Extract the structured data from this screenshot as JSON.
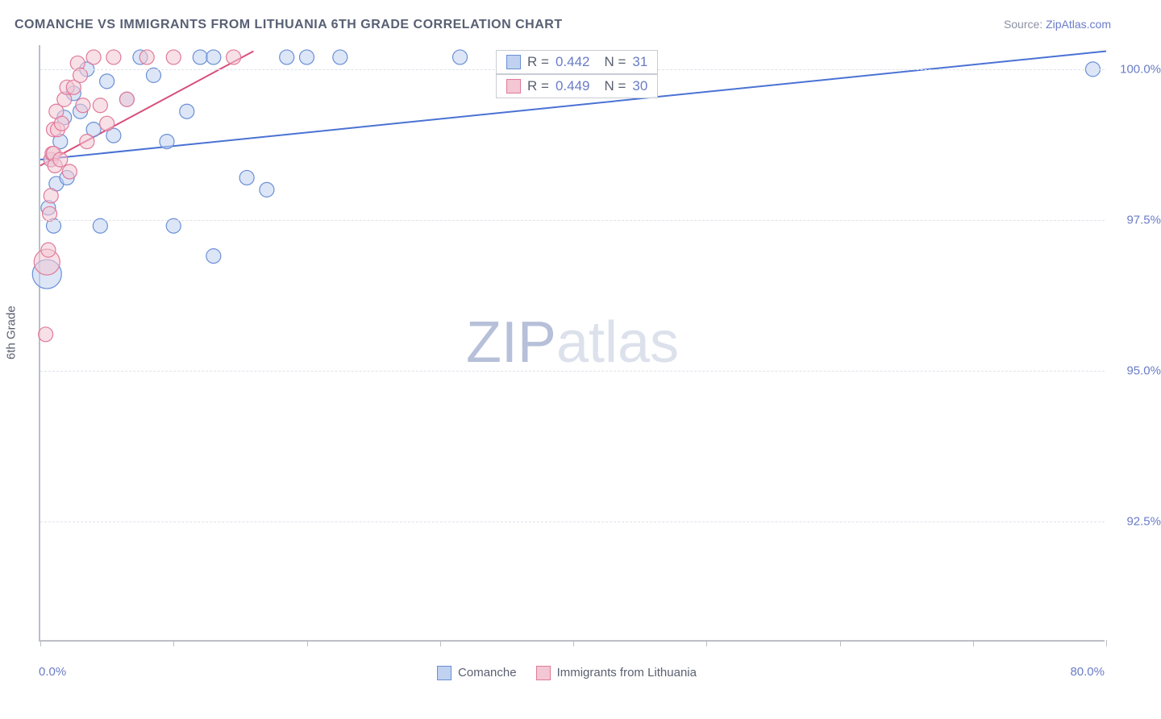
{
  "title": "COMANCHE VS IMMIGRANTS FROM LITHUANIA 6TH GRADE CORRELATION CHART",
  "source_prefix": "Source: ",
  "source_name": "ZipAtlas.com",
  "y_axis_label": "6th Grade",
  "watermark_zip": "ZIP",
  "watermark_atlas": "atlas",
  "chart": {
    "type": "scatter",
    "background_color": "#ffffff",
    "grid_color": "#dfe2ea",
    "axis_color": "#bcbfc7",
    "text_color": "#5a6070",
    "value_color": "#6a7cc7",
    "xlim": [
      0,
      80
    ],
    "ylim": [
      90.5,
      100.4
    ],
    "x_ticks": [
      0,
      10,
      20,
      30,
      40,
      50,
      60,
      70,
      80
    ],
    "x_tick_labels": {
      "left": "0.0%",
      "right": "80.0%"
    },
    "y_ticks": [
      92.5,
      95.0,
      97.5,
      100.0
    ],
    "y_tick_labels": [
      "92.5%",
      "95.0%",
      "97.5%",
      "100.0%"
    ],
    "legend": [
      {
        "label": "Comanche",
        "fill": "#c0d2f0",
        "stroke": "#6a8fd6"
      },
      {
        "label": "Immigrants from Lithuania",
        "fill": "#f3c7d3",
        "stroke": "#e07a9a"
      }
    ],
    "stats": [
      {
        "series": 0,
        "R_label": "R =",
        "R": "0.442",
        "N_label": "N =",
        "N": "31"
      },
      {
        "series": 1,
        "R_label": "R =",
        "R": "0.449",
        "N_label": "N =",
        "N": "30"
      }
    ],
    "marker_radius": 9,
    "marker_opacity": 0.55,
    "trend_lines": [
      {
        "series": 0,
        "x1": 0,
        "y1": 98.5,
        "x2": 80,
        "y2": 100.3,
        "color": "#4a72d4",
        "width": 2
      },
      {
        "series": 1,
        "x1": 0,
        "y1": 98.4,
        "x2": 16,
        "y2": 100.3,
        "color": "#d94f7a",
        "width": 2
      }
    ],
    "series": [
      {
        "name": "Comanche",
        "color_fill": "#c0d2f0",
        "color_stroke": "#6a8fd6",
        "points": [
          [
            0.5,
            96.6,
            18
          ],
          [
            0.6,
            97.7
          ],
          [
            0.8,
            98.5
          ],
          [
            1.0,
            97.4
          ],
          [
            1.2,
            98.1
          ],
          [
            1.5,
            98.8
          ],
          [
            1.8,
            99.2
          ],
          [
            2.0,
            98.2
          ],
          [
            2.5,
            99.6
          ],
          [
            3.0,
            99.3
          ],
          [
            3.5,
            100.0
          ],
          [
            4.0,
            99.0
          ],
          [
            4.5,
            97.4
          ],
          [
            5.0,
            99.8
          ],
          [
            5.5,
            98.9
          ],
          [
            6.5,
            99.5
          ],
          [
            7.5,
            100.2
          ],
          [
            8.5,
            99.9
          ],
          [
            9.5,
            98.8
          ],
          [
            10.0,
            97.4
          ],
          [
            11.0,
            99.3
          ],
          [
            12.0,
            100.2
          ],
          [
            13.0,
            100.2
          ],
          [
            13.0,
            96.9
          ],
          [
            15.5,
            98.2
          ],
          [
            17.0,
            98.0
          ],
          [
            18.5,
            100.2
          ],
          [
            20.0,
            100.2
          ],
          [
            22.5,
            100.2
          ],
          [
            31.5,
            100.2
          ],
          [
            79.0,
            100.0
          ]
        ]
      },
      {
        "name": "Immigrants from Lithuania",
        "color_fill": "#f3c7d3",
        "color_stroke": "#e07a9a",
        "points": [
          [
            0.4,
            95.6
          ],
          [
            0.5,
            96.8,
            16
          ],
          [
            0.6,
            97.0
          ],
          [
            0.7,
            97.6
          ],
          [
            0.8,
            97.9
          ],
          [
            0.8,
            98.5
          ],
          [
            0.9,
            98.6
          ],
          [
            1.0,
            98.6
          ],
          [
            1.0,
            99.0
          ],
          [
            1.1,
            98.4
          ],
          [
            1.2,
            99.3
          ],
          [
            1.3,
            99.0
          ],
          [
            1.5,
            98.5
          ],
          [
            1.6,
            99.1
          ],
          [
            1.8,
            99.5
          ],
          [
            2.0,
            99.7
          ],
          [
            2.2,
            98.3
          ],
          [
            2.5,
            99.7
          ],
          [
            2.8,
            100.1
          ],
          [
            3.0,
            99.9
          ],
          [
            3.2,
            99.4
          ],
          [
            3.5,
            98.8
          ],
          [
            4.0,
            100.2
          ],
          [
            4.5,
            99.4
          ],
          [
            5.0,
            99.1
          ],
          [
            5.5,
            100.2
          ],
          [
            6.5,
            99.5
          ],
          [
            8.0,
            100.2
          ],
          [
            10.0,
            100.2
          ],
          [
            14.5,
            100.2
          ]
        ]
      }
    ]
  }
}
